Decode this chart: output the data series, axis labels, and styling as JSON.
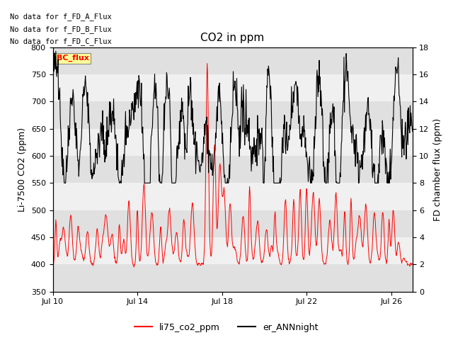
{
  "title": "CO2 in ppm",
  "ylabel_left": "Li-7500 CO2 (ppm)",
  "ylabel_right": "FD chamber flux (ppm)",
  "xlabel": "",
  "ylim_left": [
    350,
    800
  ],
  "ylim_right": [
    0,
    18
  ],
  "yticks_left": [
    350,
    400,
    450,
    500,
    550,
    600,
    650,
    700,
    750,
    800
  ],
  "yticks_right": [
    0,
    2,
    4,
    6,
    8,
    10,
    12,
    14,
    16,
    18
  ],
  "xticklabels": [
    "Jul 10",
    "Jul 14",
    "Jul 18",
    "Jul 22",
    "Jul 26"
  ],
  "xtick_positions": [
    0,
    4,
    8,
    12,
    16
  ],
  "xlim": [
    0,
    17
  ],
  "no_data_texts": [
    "No data for f_FD_A_Flux",
    "No data for f_FD_B_Flux",
    "No data for f_FD_C_Flux"
  ],
  "legend_label_red": "li75_co2_ppm",
  "legend_label_black": "er_ANNnight",
  "bc_flux_label": "BC_flux",
  "background_color": "#ffffff",
  "band_color_dark": "#e0e0e0",
  "band_color_light": "#f0f0f0",
  "red_color": "#ff0000",
  "black_color": "#000000",
  "title_fontsize": 11,
  "tick_fontsize": 8,
  "label_fontsize": 9,
  "nodata_fontsize": 7.5,
  "legend_fontsize": 9
}
